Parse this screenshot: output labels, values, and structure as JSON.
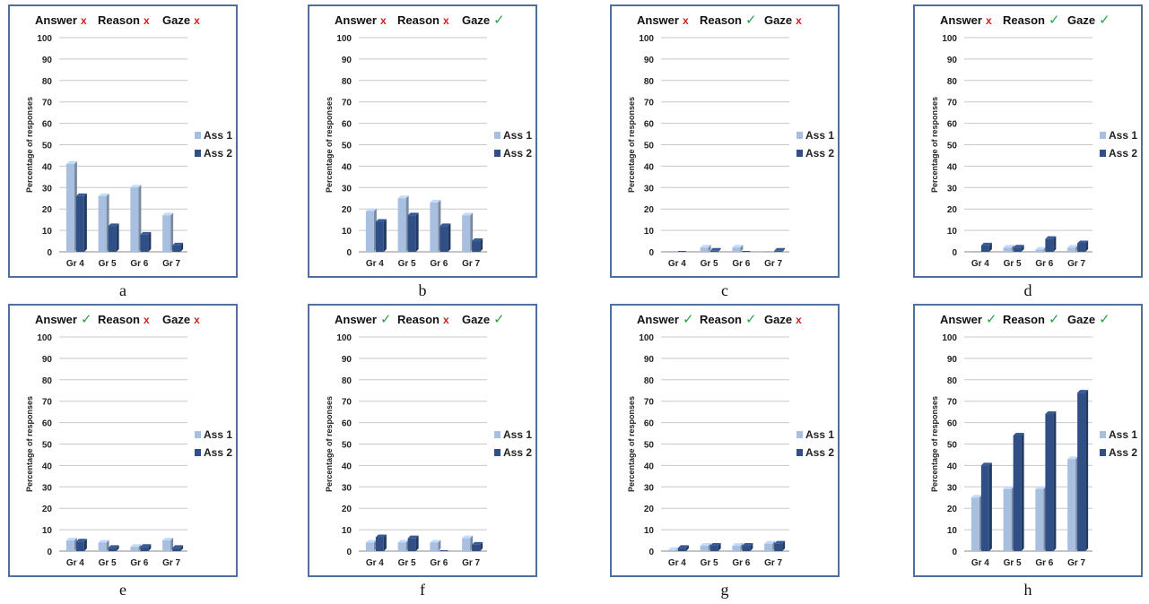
{
  "marks": {
    "yes": "✓",
    "no": "x"
  },
  "colors": {
    "ass1": "#a9bfdf",
    "ass2": "#2f4f86",
    "frame": "#4f6f9f",
    "grid": "#c8c8c8",
    "yes": "#2aa048",
    "no": "#d81c1c"
  },
  "chart_data": [
    {
      "caption": "a",
      "type": "bar",
      "header": [
        {
          "label": "Answer",
          "ok": false
        },
        {
          "label": "Reason",
          "ok": false
        },
        {
          "label": "Gaze",
          "ok": false
        }
      ],
      "ylabel": "Percentage of responses",
      "ylim": [
        0,
        100
      ],
      "yticks": [
        0,
        10,
        20,
        30,
        40,
        50,
        60,
        70,
        80,
        90,
        100
      ],
      "categories": [
        "Gr 4",
        "Gr 5",
        "Gr 6",
        "Gr 7"
      ],
      "grid": true,
      "legend": "right",
      "series": [
        {
          "name": "Ass 1",
          "values": [
            41,
            26,
            30,
            17
          ]
        },
        {
          "name": "Ass 2",
          "values": [
            26,
            12,
            8,
            3
          ]
        }
      ]
    },
    {
      "caption": "b",
      "type": "bar",
      "header": [
        {
          "label": "Answer",
          "ok": false
        },
        {
          "label": "Reason",
          "ok": false
        },
        {
          "label": "Gaze",
          "ok": true
        }
      ],
      "ylabel": "Percentage of responses",
      "ylim": [
        0,
        100
      ],
      "yticks": [
        0,
        10,
        20,
        30,
        40,
        50,
        60,
        70,
        80,
        90,
        100
      ],
      "categories": [
        "Gr 4",
        "Gr 5",
        "Gr 6",
        "Gr 7"
      ],
      "grid": true,
      "legend": "right",
      "series": [
        {
          "name": "Ass 1",
          "values": [
            19,
            25,
            23,
            17
          ]
        },
        {
          "name": "Ass 2",
          "values": [
            14,
            17,
            12,
            5
          ]
        }
      ]
    },
    {
      "caption": "c",
      "type": "bar",
      "header": [
        {
          "label": "Answer",
          "ok": false
        },
        {
          "label": "Reason",
          "ok": true
        },
        {
          "label": "Gaze",
          "ok": false
        }
      ],
      "ylabel": "Percentage of responses",
      "ylim": [
        0,
        100
      ],
      "yticks": [
        0,
        10,
        20,
        30,
        40,
        50,
        60,
        70,
        80,
        90,
        100
      ],
      "categories": [
        "Gr 4",
        "Gr 5",
        "Gr 6",
        "Gr 7"
      ],
      "grid": true,
      "legend": "right",
      "series": [
        {
          "name": "Ass 1",
          "values": [
            0,
            2,
            2,
            0
          ]
        },
        {
          "name": "Ass 2",
          "values": [
            0,
            0.5,
            0,
            0.5
          ]
        }
      ]
    },
    {
      "caption": "d",
      "type": "bar",
      "header": [
        {
          "label": "Answer",
          "ok": false
        },
        {
          "label": "Reason",
          "ok": true
        },
        {
          "label": "Gaze",
          "ok": true
        }
      ],
      "ylabel": "Percentage of responses",
      "ylim": [
        0,
        100
      ],
      "yticks": [
        0,
        10,
        20,
        30,
        40,
        50,
        60,
        70,
        80,
        90,
        100
      ],
      "categories": [
        "Gr 4",
        "Gr 5",
        "Gr 6",
        "Gr 7"
      ],
      "grid": true,
      "legend": "right",
      "series": [
        {
          "name": "Ass 1",
          "values": [
            0,
            2,
            1,
            2
          ]
        },
        {
          "name": "Ass 2",
          "values": [
            3,
            2,
            6,
            4
          ]
        }
      ]
    },
    {
      "caption": "e",
      "type": "bar",
      "header": [
        {
          "label": "Answer",
          "ok": true
        },
        {
          "label": "Reason",
          "ok": false
        },
        {
          "label": "Gaze",
          "ok": false
        }
      ],
      "ylabel": "Percentage of responses",
      "ylim": [
        0,
        100
      ],
      "yticks": [
        0,
        10,
        20,
        30,
        40,
        50,
        60,
        70,
        80,
        90,
        100
      ],
      "categories": [
        "Gr 4",
        "Gr 5",
        "Gr 6",
        "Gr 7"
      ],
      "grid": true,
      "legend": "right",
      "series": [
        {
          "name": "Ass 1",
          "values": [
            5,
            4,
            2,
            5
          ]
        },
        {
          "name": "Ass 2",
          "values": [
            4.5,
            1.5,
            2,
            1.5
          ]
        }
      ]
    },
    {
      "caption": "f",
      "type": "bar",
      "header": [
        {
          "label": "Answer",
          "ok": true
        },
        {
          "label": "Reason",
          "ok": false
        },
        {
          "label": "Gaze",
          "ok": true
        }
      ],
      "ylabel": "Percentage of responses",
      "ylim": [
        0,
        100
      ],
      "yticks": [
        0,
        10,
        20,
        30,
        40,
        50,
        60,
        70,
        80,
        90,
        100
      ],
      "categories": [
        "Gr 4",
        "Gr 5",
        "Gr 6",
        "Gr 7"
      ],
      "grid": true,
      "legend": "right",
      "series": [
        {
          "name": "Ass 1",
          "values": [
            4,
            4,
            4,
            6
          ]
        },
        {
          "name": "Ass 2",
          "values": [
            6.5,
            6,
            0,
            3
          ]
        }
      ]
    },
    {
      "caption": "g",
      "type": "bar",
      "header": [
        {
          "label": "Answer",
          "ok": true
        },
        {
          "label": "Reason",
          "ok": true
        },
        {
          "label": "Gaze",
          "ok": false
        }
      ],
      "ylabel": "Percentage of responses",
      "ylim": [
        0,
        100
      ],
      "yticks": [
        0,
        10,
        20,
        30,
        40,
        50,
        60,
        70,
        80,
        90,
        100
      ],
      "categories": [
        "Gr 4",
        "Gr 5",
        "Gr 6",
        "Gr 7"
      ],
      "grid": true,
      "legend": "right",
      "series": [
        {
          "name": "Ass 1",
          "values": [
            0.5,
            2.5,
            2.5,
            3.5
          ]
        },
        {
          "name": "Ass 2",
          "values": [
            1.5,
            2.5,
            2.5,
            3.5
          ]
        }
      ]
    },
    {
      "caption": "h",
      "type": "bar",
      "header": [
        {
          "label": "Answer",
          "ok": true
        },
        {
          "label": "Reason",
          "ok": true
        },
        {
          "label": "Gaze",
          "ok": true
        }
      ],
      "ylabel": "Percentage of responses",
      "ylim": [
        0,
        100
      ],
      "yticks": [
        0,
        10,
        20,
        30,
        40,
        50,
        60,
        70,
        80,
        90,
        100
      ],
      "categories": [
        "Gr 4",
        "Gr 5",
        "Gr 6",
        "Gr 7"
      ],
      "grid": true,
      "legend": "right",
      "series": [
        {
          "name": "Ass 1",
          "values": [
            25,
            29,
            29,
            43
          ]
        },
        {
          "name": "Ass 2",
          "values": [
            40,
            54,
            64,
            74
          ]
        }
      ]
    }
  ]
}
